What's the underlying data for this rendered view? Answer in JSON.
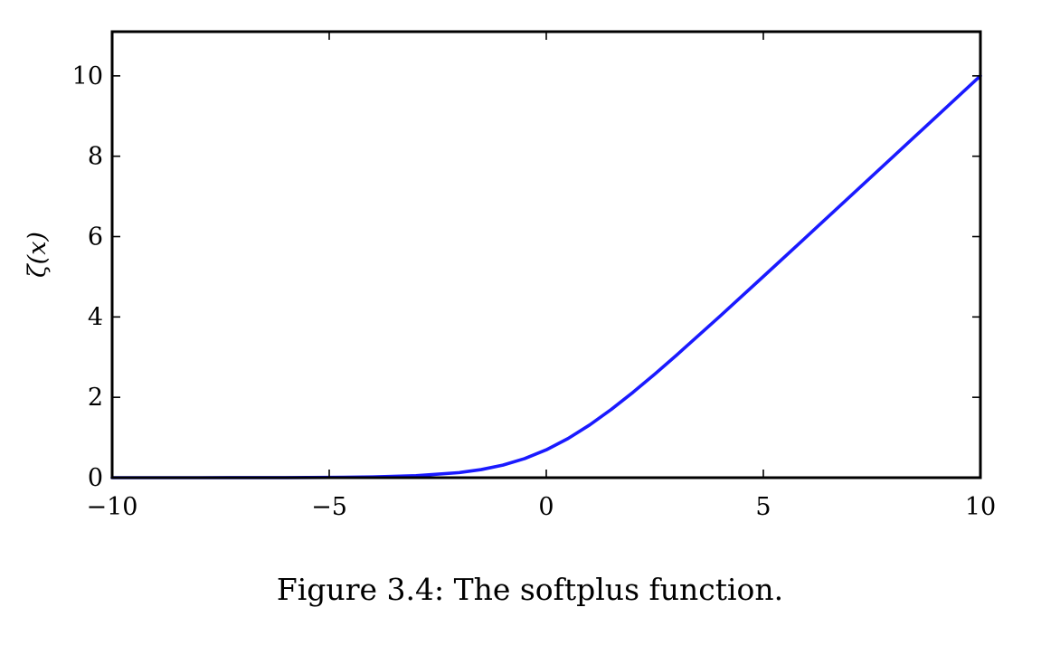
{
  "chart_data": {
    "type": "line",
    "title": "",
    "xlabel": "",
    "ylabel": "ζ(x)",
    "xlim": [
      -10,
      10
    ],
    "ylim": [
      0,
      11.1
    ],
    "x_ticks": [
      -10,
      -5,
      0,
      5,
      10
    ],
    "x_tick_labels": [
      "−10",
      "−5",
      "0",
      "5",
      "10"
    ],
    "y_ticks": [
      0,
      2,
      4,
      6,
      8,
      10
    ],
    "y_tick_labels": [
      "0",
      "2",
      "4",
      "6",
      "8",
      "10"
    ],
    "grid": false,
    "series": [
      {
        "color": "#1a1aff",
        "x": [
          -10,
          -8,
          -6,
          -5,
          -4,
          -3,
          -2,
          -1.5,
          -1,
          -0.5,
          0,
          0.5,
          1,
          1.5,
          2,
          2.5,
          3,
          4,
          5,
          6,
          7,
          8,
          9,
          10
        ],
        "y": [
          5e-05,
          0.0003,
          0.0025,
          0.0067,
          0.018,
          0.049,
          0.127,
          0.201,
          0.313,
          0.474,
          0.693,
          0.974,
          1.313,
          1.701,
          2.127,
          2.579,
          3.049,
          4.018,
          5.007,
          6.002,
          7.001,
          8.0003,
          9.0001,
          10.00005
        ]
      }
    ]
  },
  "caption": "Figure 3.4: The softplus function."
}
